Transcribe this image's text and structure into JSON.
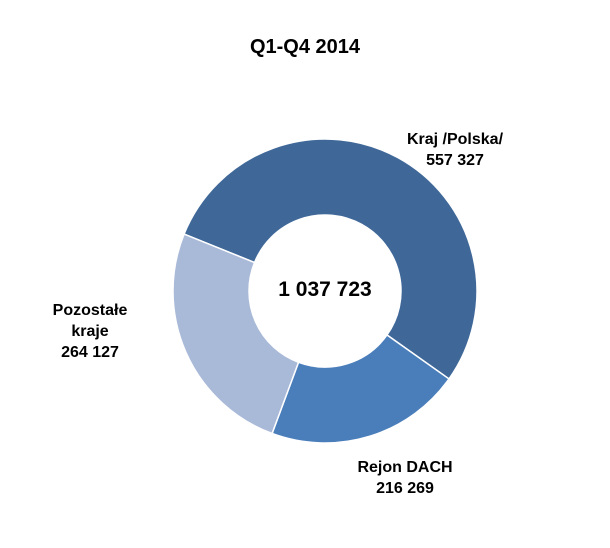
{
  "chart_data": {
    "type": "pie",
    "title": "Q1-Q4 2014",
    "center_label": "1 037 723",
    "slices": [
      {
        "label": "Kraj /Polska/",
        "value": 557327,
        "value_label": "557 327",
        "color": "#3F6899"
      },
      {
        "label": "Rejon DACH",
        "value": 216269,
        "value_label": "216 269",
        "color": "#4A7EBB"
      },
      {
        "label": "Pozostałe kraje",
        "value": 264127,
        "value_label": "264 127",
        "color": "#A9B9D8"
      }
    ]
  }
}
